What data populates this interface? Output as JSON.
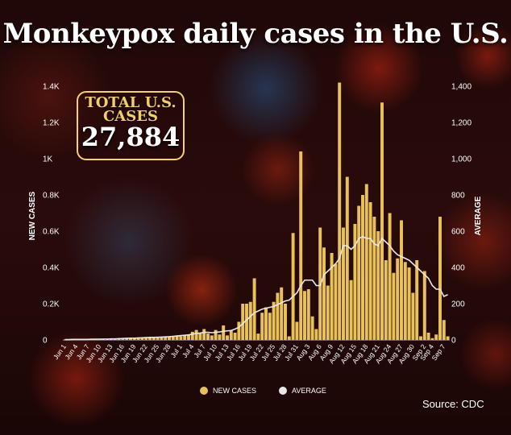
{
  "title": "Monkeypox daily cases in the U.S.",
  "total_box": {
    "label": "TOTAL U.S.\nCASES",
    "value": "27,884"
  },
  "source": "Source: CDC",
  "colors": {
    "bar": "#e8c15a",
    "average": "#e8e8e8",
    "box_border": "#f5d070"
  },
  "chart_data": {
    "type": "bar",
    "title": "Monkeypox daily cases in the U.S.",
    "ylabel": "NEW CASES",
    "y2label": "AVERAGE",
    "ylim": [
      0,
      1400
    ],
    "yticks": [
      0,
      200,
      400,
      600,
      800,
      1000,
      1200,
      1400
    ],
    "ytick_labels": [
      "0",
      "0.2K",
      "0.4K",
      "0.6K",
      "0.8K",
      "1K",
      "1.2K",
      "1.4K"
    ],
    "y2ticks": [
      0,
      200,
      400,
      600,
      800,
      1000,
      1200,
      1400
    ],
    "y2tick_labels": [
      "0",
      "200",
      "400",
      "600",
      "800",
      "1,000",
      "1,200",
      "1,400"
    ],
    "grid": false,
    "legend_position": "bottom",
    "categories": [
      "Jun 1",
      "Jun 2",
      "Jun 3",
      "Jun 4",
      "Jun 5",
      "Jun 6",
      "Jun 7",
      "Jun 8",
      "Jun 9",
      "Jun 10",
      "Jun 11",
      "Jun 12",
      "Jun 13",
      "Jun 14",
      "Jun 15",
      "Jun 16",
      "Jun 17",
      "Jun 18",
      "Jun 19",
      "Jun 20",
      "Jun 21",
      "Jun 22",
      "Jun 23",
      "Jun 24",
      "Jun 25",
      "Jun 26",
      "Jun 27",
      "Jun 28",
      "Jun 29",
      "Jun 30",
      "Jul 1",
      "Jul 2",
      "Jul 3",
      "Jul 4",
      "Jul 5",
      "Jul 6",
      "Jul 7",
      "Jul 8",
      "Jul 9",
      "Jul 10",
      "Jul 11",
      "Jul 12",
      "Jul 13",
      "Jul 14",
      "Jul 15",
      "Jul 16",
      "Jul 17",
      "Jul 18",
      "Jul 19",
      "Jul 20",
      "Jul 21",
      "Jul 22",
      "Jul 23",
      "Jul 24",
      "Jul 25",
      "Jul 26",
      "Jul 27",
      "Jul 28",
      "Jul 29",
      "Jul 30",
      "Jul 31",
      "Aug 1",
      "Aug 2",
      "Aug 3",
      "Aug 4",
      "Aug 5",
      "Aug 6",
      "Aug 7",
      "Aug 8",
      "Aug 9",
      "Aug 10",
      "Aug 11",
      "Aug 12",
      "Aug 13",
      "Aug 14",
      "Aug 15",
      "Aug 16",
      "Aug 17",
      "Aug 18",
      "Aug 19",
      "Aug 20",
      "Aug 21",
      "Aug 22",
      "Aug 23",
      "Aug 24",
      "Aug 25",
      "Aug 26",
      "Aug 27",
      "Aug 28",
      "Aug 29",
      "Aug 30",
      "Aug 31",
      "Sep 1",
      "Sep 2",
      "Sep 3",
      "Sep 4",
      "Sep 5",
      "Sep 6",
      "Sep 7",
      "Sep 8"
    ],
    "tick_labels": [
      "Jun 1",
      "Jun 4",
      "Jun 7",
      "Jun 10",
      "Jun 13",
      "Jun 16",
      "Jun 19",
      "Jun 22",
      "Jun 25",
      "Jun 28",
      "Jul 1",
      "Jul 4",
      "Jul 7",
      "Jul 10",
      "Jul 13",
      "Jul 16",
      "Jul 19",
      "Jul 22",
      "Jul 25",
      "Jul 28",
      "Jul 31",
      "Aug 3",
      "Aug 6",
      "Aug 9",
      "Aug 12",
      "Aug 15",
      "Aug 18",
      "Aug 21",
      "Aug 24",
      "Aug 27",
      "Aug 30",
      "Sep 2",
      "Sep 4",
      "Sep 7"
    ],
    "series": [
      {
        "name": "NEW CASES",
        "type": "bar",
        "values": [
          2,
          3,
          2,
          4,
          3,
          2,
          5,
          4,
          6,
          3,
          5,
          4,
          8,
          6,
          10,
          9,
          7,
          12,
          10,
          14,
          11,
          13,
          12,
          15,
          14,
          16,
          18,
          20,
          22,
          25,
          20,
          28,
          30,
          45,
          55,
          40,
          60,
          35,
          25,
          55,
          30,
          80,
          25,
          50,
          40,
          100,
          200,
          200,
          210,
          340,
          35,
          150,
          180,
          150,
          210,
          260,
          290,
          200,
          20,
          590,
          100,
          1040,
          270,
          280,
          130,
          60,
          620,
          510,
          300,
          480,
          420,
          1420,
          620,
          900,
          330,
          640,
          740,
          800,
          860,
          760,
          680,
          600,
          1310,
          440,
          700,
          370,
          450,
          660,
          430,
          400,
          260,
          440,
          20,
          380,
          40,
          10,
          30,
          680,
          110,
          20
        ]
      },
      {
        "name": "AVERAGE",
        "type": "line",
        "values": [
          2,
          2,
          3,
          3,
          3,
          3,
          3,
          4,
          4,
          4,
          5,
          5,
          6,
          6,
          7,
          8,
          9,
          10,
          10,
          11,
          12,
          13,
          14,
          14,
          15,
          16,
          17,
          18,
          20,
          22,
          24,
          26,
          28,
          32,
          36,
          38,
          42,
          42,
          40,
          42,
          44,
          48,
          50,
          52,
          60,
          70,
          90,
          110,
          130,
          150,
          160,
          170,
          175,
          180,
          185,
          195,
          205,
          215,
          220,
          240,
          260,
          300,
          330,
          330,
          330,
          300,
          300,
          360,
          380,
          400,
          420,
          450,
          520,
          520,
          500,
          520,
          560,
          570,
          560,
          560,
          530,
          520,
          560,
          540,
          520,
          490,
          470,
          460,
          450,
          440,
          420,
          400,
          380,
          360,
          340,
          300,
          280,
          280,
          240,
          250
        ]
      }
    ]
  }
}
